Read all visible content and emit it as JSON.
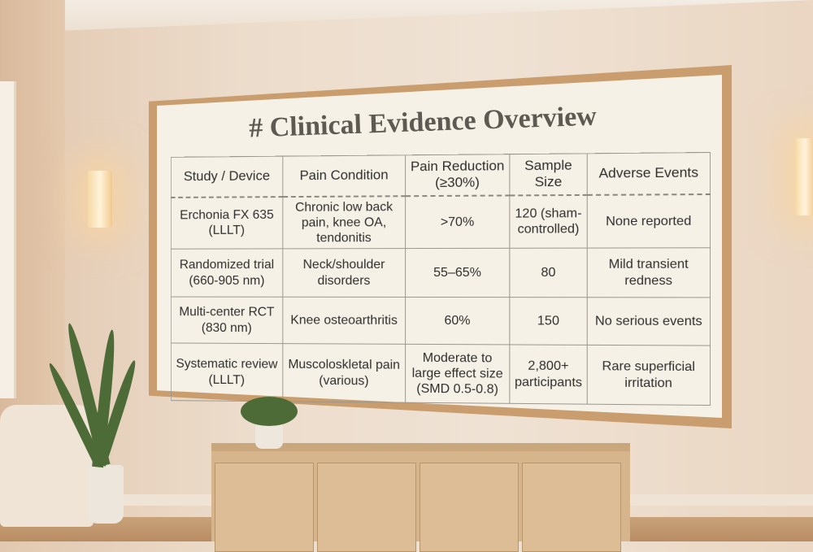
{
  "board": {
    "title": "# Clinical Evidence Overview",
    "headers": [
      "Study / Device",
      "Pain Condition",
      "Pain Reduction (≥30%)",
      "Sample Size",
      "Adverse Events"
    ],
    "rows": [
      [
        "Erchonia FX 635 (LLLT)",
        "Chronic low back pain, knee OA, tendonitis",
        ">70%",
        "120 (sham-controlled)",
        "None reported"
      ],
      [
        "Randomized trial (660-905 nm)",
        "Neck/shoulder disorders",
        "55–65%",
        "80",
        "Mild transient redness"
      ],
      [
        "Multi-center RCT (830 nm)",
        "Knee osteoarthritis",
        "60%",
        "150",
        "No serious events"
      ],
      [
        "Systematic review (LLLT)",
        "Muscoloskletal pain (various)",
        "Moderate to large effect size (SMD 0.5-0.8)",
        "2,800+ participants",
        "Rare superficial irritation"
      ]
    ]
  }
}
